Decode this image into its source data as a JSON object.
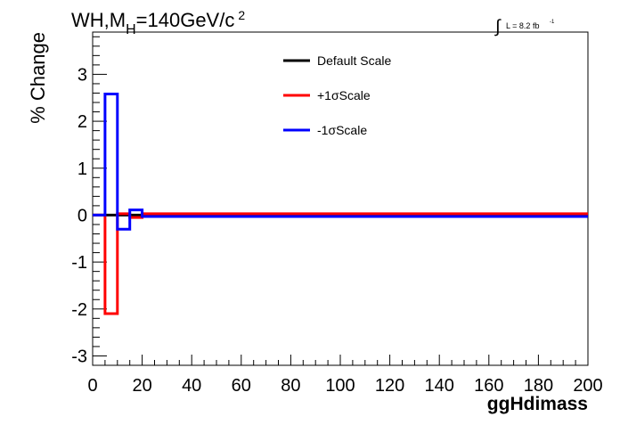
{
  "chart_data": {
    "type": "line",
    "title_main": "WH,M",
    "title_sub": "H",
    "title_rest": "=140GeV/c",
    "title_sup": "2",
    "lumi_label": "L = 8.2 fb",
    "lumi_exp": "-1",
    "xlabel": "ggHdimass",
    "ylabel": "% Change",
    "xlim": [
      0,
      200
    ],
    "ylim": [
      -3.2,
      3.9
    ],
    "xticks": [
      0,
      20,
      40,
      60,
      80,
      100,
      120,
      140,
      160,
      180,
      200
    ],
    "yticks": [
      -3,
      -2,
      -1,
      0,
      1,
      2,
      3
    ],
    "legend_position": "top-center",
    "series": [
      {
        "name": "Default Scale",
        "color": "#000000",
        "steps": [
          [
            0,
            0
          ],
          [
            200,
            0
          ]
        ]
      },
      {
        "name": "+1σScale",
        "color": "#ff0000",
        "steps": [
          [
            0,
            0
          ],
          [
            5,
            -2.1
          ],
          [
            10,
            0.03
          ],
          [
            15,
            -0.05
          ],
          [
            20,
            0.03
          ],
          [
            200,
            0
          ]
        ]
      },
      {
        "name": "-1σScale",
        "color": "#0000ff",
        "steps": [
          [
            0,
            0
          ],
          [
            5,
            2.58
          ],
          [
            10,
            -0.3
          ],
          [
            15,
            0.11
          ],
          [
            20,
            -0.03
          ],
          [
            200,
            0
          ]
        ]
      }
    ]
  }
}
